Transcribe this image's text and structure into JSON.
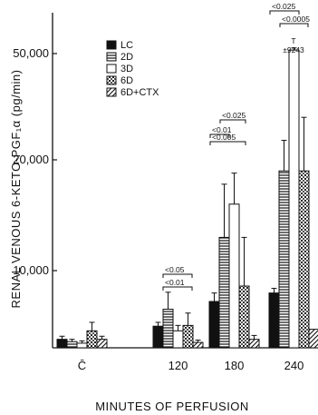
{
  "chart_data": {
    "type": "bar",
    "title": "",
    "xlabel": "MINUTES OF PERFUSION",
    "ylabel": "RENAL VENOUS 6-KETO-PGF₁α (pg/min)",
    "categories": [
      "C̄",
      "120",
      "180",
      "240"
    ],
    "y_ticks": [
      "10,000",
      "20,000",
      "50,000"
    ],
    "y_axis_scale": "broken",
    "legend_position": "top-left",
    "series": [
      {
        "name": "LC",
        "pattern": "solid",
        "values": [
          1100,
          2800,
          6000,
          7100
        ],
        "errors": [
          400,
          500,
          1100,
          600
        ]
      },
      {
        "name": "2D",
        "pattern": "horizontal-lines",
        "values": [
          800,
          5000,
          13000,
          19000
        ],
        "errors": [
          300,
          2200,
          4800,
          6500
        ]
      },
      {
        "name": "3D",
        "pattern": "open",
        "values": [
          600,
          2200,
          16000,
          51000
        ],
        "errors": [
          300,
          700,
          2800,
          600
        ]
      },
      {
        "name": "6D",
        "pattern": "stippled",
        "values": [
          2200,
          2900,
          8000,
          19000
        ],
        "errors": [
          1100,
          1600,
          5000,
          13000
        ]
      },
      {
        "name": "6D+CTX",
        "pattern": "diagonal-lines",
        "values": [
          1100,
          700,
          1100,
          2400
        ],
        "errors": [
          400,
          300,
          500,
          0
        ]
      }
    ],
    "annotations": [
      {
        "group": "120",
        "labels": [
          "<0.05",
          "<0.01"
        ]
      },
      {
        "group": "180",
        "labels": [
          "<0.01",
          "<0.025",
          "<0.005"
        ]
      },
      {
        "group": "240",
        "labels": [
          "<0.025",
          "<0.0005",
          "T",
          "±9243"
        ]
      }
    ]
  }
}
